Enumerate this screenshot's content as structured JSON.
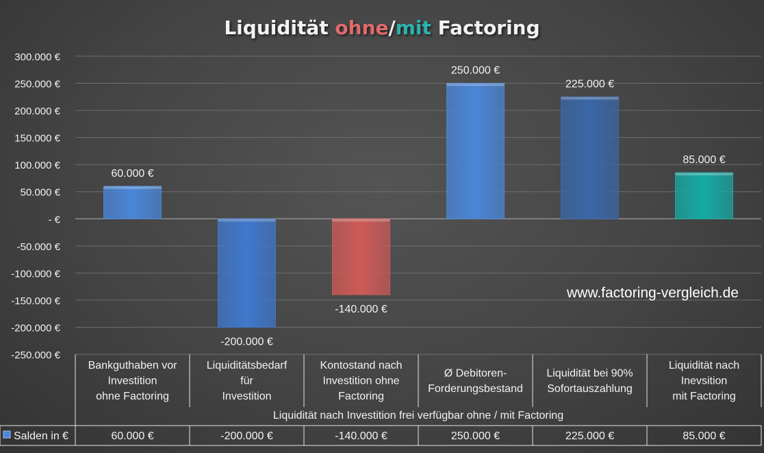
{
  "title": {
    "part1": "Liquidität ",
    "part2": "ohne",
    "part3": "/",
    "part4": "mit",
    "part5": " Factoring",
    "colors": {
      "ohne": "#e06a6a",
      "mit": "#2bb3ad"
    }
  },
  "watermark": "www.factoring-vergleich.de",
  "chart_data": {
    "type": "bar",
    "title": "Liquidität ohne/mit Factoring",
    "categories": [
      "Bankguthaben vor Investition ohne Factoring",
      "Liquiditätsbedarf für Investition",
      "Kontostand nach Investition ohne Factoring",
      "Ø Debitoren-Forderungsbestand",
      "Liquidität bei 90% Sofortauszahlung",
      "Liquidität nach Inevsition mit Factoring"
    ],
    "category_lines": [
      [
        "Bankguthaben vor",
        "Investition",
        "ohne Factoring"
      ],
      [
        "Liquiditätsbedarf",
        "für",
        "Investition"
      ],
      [
        "Kontostand nach",
        "Investition ohne",
        "Factoring"
      ],
      [
        "Ø Debitoren-",
        "Forderungsbestand"
      ],
      [
        "Liquidität bei 90%",
        "Sofortauszahlung"
      ],
      [
        "Liquidität nach",
        "Inevsition",
        "mit Factoring"
      ]
    ],
    "group_label": "Liquidität nach Investition frei verfügbar ohne / mit Factoring",
    "series": [
      {
        "name": "Salden in €",
        "values": [
          60000,
          -200000,
          -140000,
          250000,
          225000,
          85000
        ],
        "labels": [
          "60.000 €",
          "-200.000 €",
          "-140.000 €",
          "250.000 €",
          "225.000 €",
          "85.000 €"
        ]
      }
    ],
    "bar_colors": [
      "#4a86d8",
      "#3f78cc",
      "#cd5a57",
      "#4a86d8",
      "#3a67a8",
      "#16aaa4"
    ],
    "ylim": [
      -250000,
      300000
    ],
    "yticks": [
      300000,
      250000,
      200000,
      150000,
      100000,
      50000,
      0,
      -50000,
      -100000,
      -150000,
      -200000,
      -250000
    ],
    "ytick_labels": [
      "300.000 €",
      "250.000 €",
      "200.000 €",
      "150.000 €",
      "100.000 €",
      "50.000 €",
      "-  €",
      "-50.000 €",
      "-100.000 €",
      "-150.000 €",
      "-200.000 €",
      "-250.000 €"
    ],
    "grid": true,
    "legend": "data table"
  }
}
